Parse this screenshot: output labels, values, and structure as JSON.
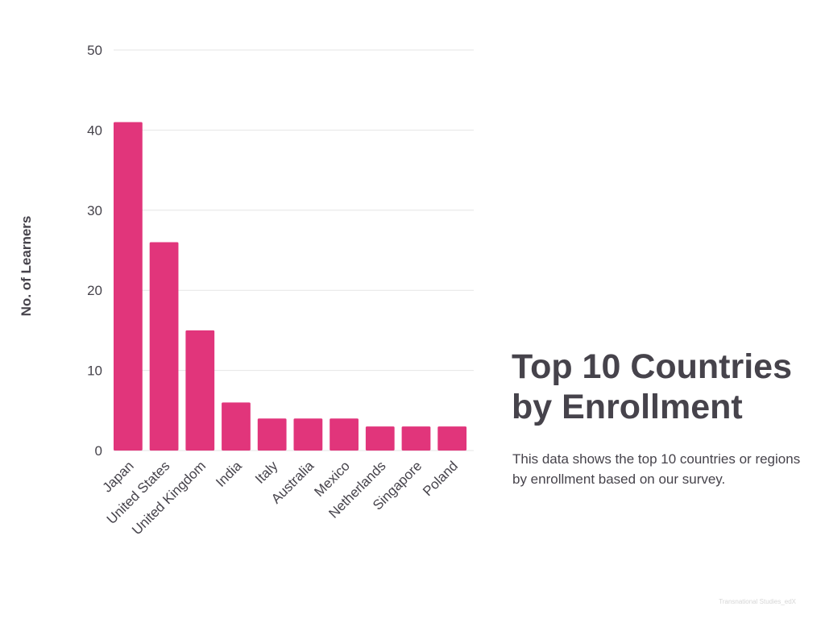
{
  "title": "Top 10 Countries by Enrollment",
  "description": "This data shows the top 10 countries or regions by enrollment based on our survey.",
  "footer": "Transnational Studies_edX",
  "colors": {
    "bar": "#e1357b",
    "text": "#46434b",
    "grid": "#e6e6e6"
  },
  "chart_data": {
    "type": "bar",
    "title": "Top 10 Countries by Enrollment",
    "xlabel": "",
    "ylabel": "No. of Learners",
    "ylim": [
      0,
      50
    ],
    "yticks": [
      0,
      10,
      20,
      30,
      40,
      50
    ],
    "grid": true,
    "categories": [
      "Japan",
      "United States",
      "United Kingdom",
      "India",
      "Italy",
      "Australia",
      "Mexico",
      "Netherlands",
      "Singapore",
      "Poland"
    ],
    "values": [
      41,
      26,
      15,
      6,
      4,
      4,
      4,
      3,
      3,
      3
    ]
  }
}
